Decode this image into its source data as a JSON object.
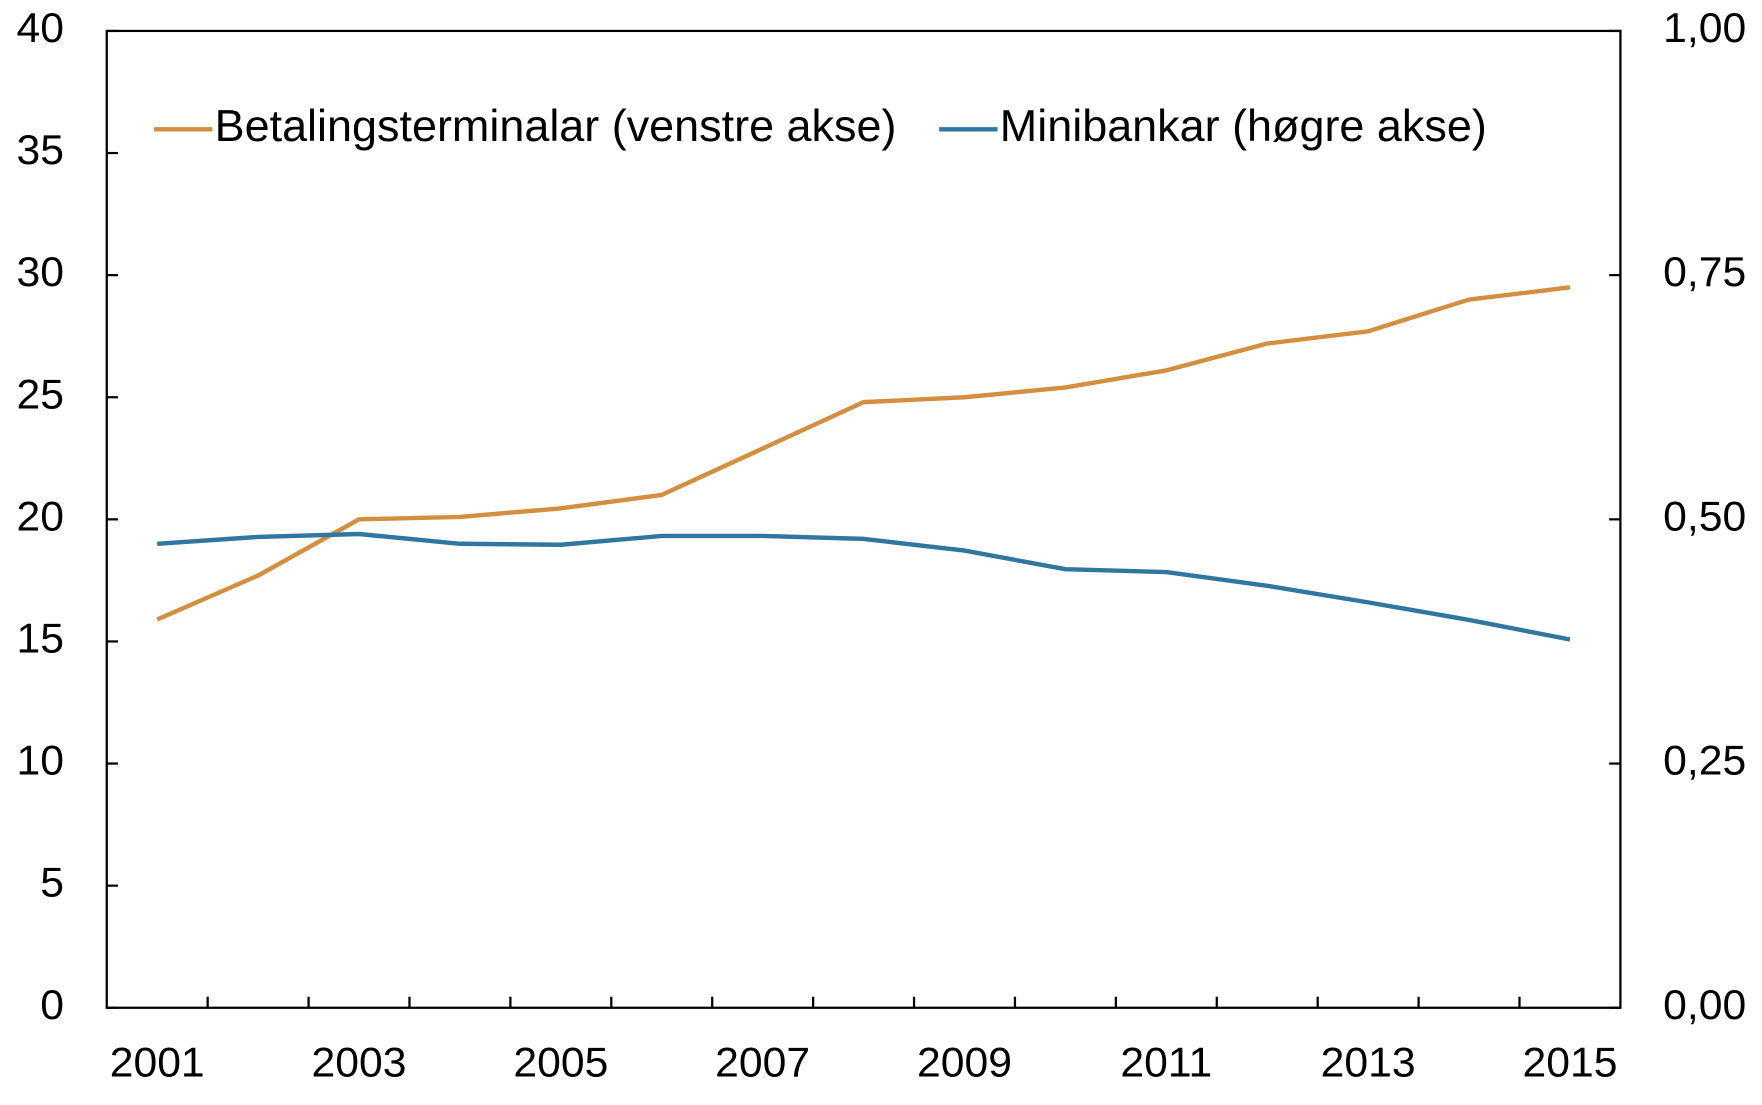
{
  "chart_data": {
    "type": "line",
    "categories": [
      "2001",
      null,
      "2003",
      null,
      "2005",
      null,
      "2007",
      null,
      "2009",
      null,
      "2011",
      null,
      "2013",
      null,
      "2015"
    ],
    "series": [
      {
        "name": "Betalingsterminalar (venstre akse)",
        "color": "#d38f3f",
        "axis": "y",
        "values": [
          15.9,
          17.7,
          20.0,
          20.1,
          20.45,
          21.0,
          22.9,
          24.8,
          25.0,
          25.4,
          26.1,
          27.2,
          27.7,
          29.0,
          29.5
        ]
      },
      {
        "name": "Minibankar (høgre akse)",
        "color": "#2f76a0",
        "axis": "y2",
        "values": [
          0.475,
          0.482,
          0.485,
          0.475,
          0.474,
          0.483,
          0.483,
          0.48,
          0.468,
          0.449,
          0.446,
          0.432,
          0.415,
          0.397,
          0.377
        ]
      }
    ],
    "ylim": [
      0,
      40
    ],
    "yticks": [
      0,
      5,
      10,
      15,
      20,
      25,
      30,
      35,
      40
    ],
    "y2lim": [
      0,
      1
    ],
    "y2ticks": [
      {
        "value": 0,
        "label": "0,00"
      },
      {
        "value": 0.25,
        "label": "0,25"
      },
      {
        "value": 0.5,
        "label": "0,50"
      },
      {
        "value": 0.75,
        "label": "0,75"
      },
      {
        "value": 1,
        "label": "1,00"
      }
    ],
    "legend": "upper left"
  }
}
